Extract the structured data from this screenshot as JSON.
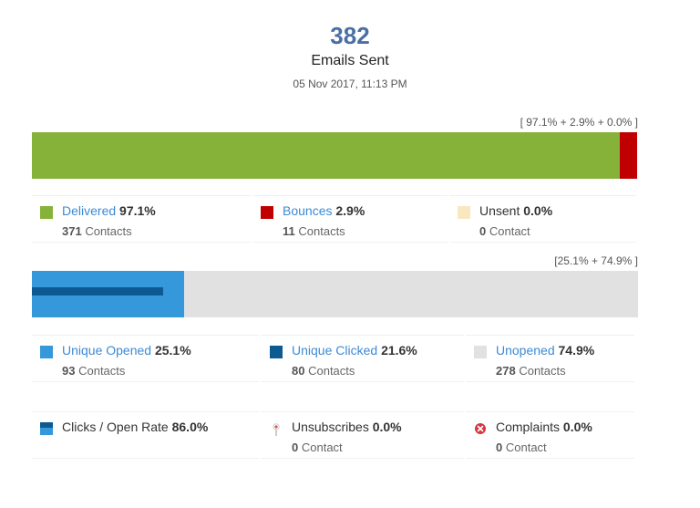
{
  "header": {
    "count": "382",
    "title": "Emails Sent",
    "date": "05 Nov 2017, 11:13 PM"
  },
  "colors": {
    "delivered": "#86b23a",
    "bounces": "#c00000",
    "unsent": "#f8e8c0",
    "opened": "#3598db",
    "clicked": "#0d5a92",
    "unopened": "#e1e1e1"
  },
  "delivery": {
    "summary": "[ 97.1% + 2.9% + 0.0% ]",
    "bar": {
      "delivered_pct": 97.1,
      "bounces_pct": 2.9,
      "unsent_pct": 0.0
    },
    "items": [
      {
        "label": "Delivered",
        "value": "97.1%",
        "count": "371",
        "unit": "Contacts"
      },
      {
        "label": "Bounces",
        "value": "2.9%",
        "count": "11",
        "unit": "Contacts"
      },
      {
        "label": "Unsent",
        "value": "0.0%",
        "count": "0",
        "unit": "Contact"
      }
    ]
  },
  "engagement": {
    "summary": "[25.1% + 74.9% ]",
    "bar": {
      "opened_pct": 25.1,
      "clicked_pct": 21.6
    },
    "items": [
      {
        "label": "Unique Opened",
        "value": "25.1%",
        "count": "93",
        "unit": "Contacts"
      },
      {
        "label": "Unique Clicked",
        "value": "21.6%",
        "count": "80",
        "unit": "Contacts"
      },
      {
        "label": "Unopened",
        "value": "74.9%",
        "count": "278",
        "unit": "Contacts"
      }
    ]
  },
  "stats": {
    "items": [
      {
        "label": "Clicks / Open Rate",
        "value": "86.0%",
        "icon": "clicks-rate-icon"
      },
      {
        "label": "Unsubscribes",
        "value": "0.0%",
        "count": "0",
        "unit": "Contact",
        "icon": "unsubscribe-pin-icon"
      },
      {
        "label": "Complaints",
        "value": "0.0%",
        "count": "0",
        "unit": "Contact",
        "icon": "complaint-x-icon"
      }
    ]
  }
}
